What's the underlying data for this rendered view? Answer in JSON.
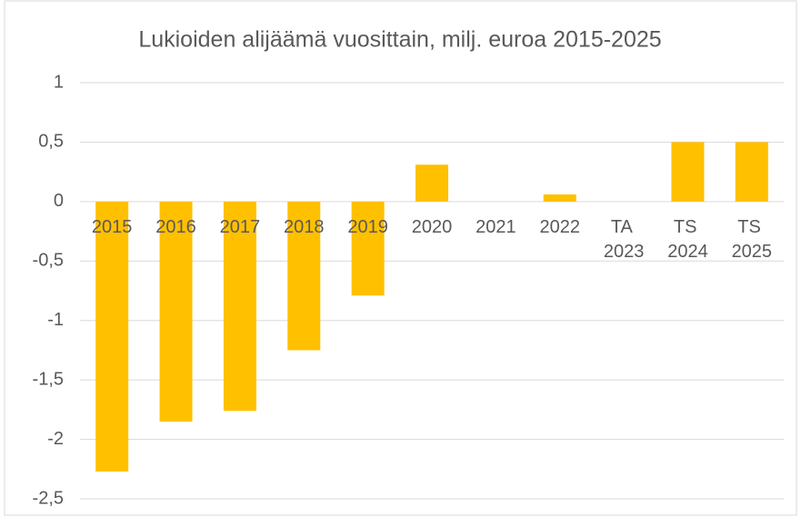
{
  "chart_data": {
    "type": "bar",
    "title": "Lukioiden alijäämä vuosittain, milj. euroa 2015-2025",
    "categories": [
      "2015",
      "2016",
      "2017",
      "2018",
      "2019",
      "2020",
      "2021",
      "2022",
      "TA 2023",
      "TS 2024",
      "TS 2025"
    ],
    "values": [
      -2.27,
      -1.85,
      -1.76,
      -1.25,
      -0.79,
      0.31,
      0,
      0.06,
      0,
      0.5,
      0.5
    ],
    "color": "#ffc000",
    "ylim": [
      -2.5,
      1
    ],
    "yticks": [
      1,
      {
        "value": 0.5,
        "label": "0,5"
      },
      0,
      {
        "value": -0.5,
        "label": "-0,5"
      },
      -1,
      {
        "value": -1.5,
        "label": "-1,5"
      },
      -2,
      {
        "value": -2.5,
        "label": "-2,5"
      }
    ],
    "grid": true
  }
}
